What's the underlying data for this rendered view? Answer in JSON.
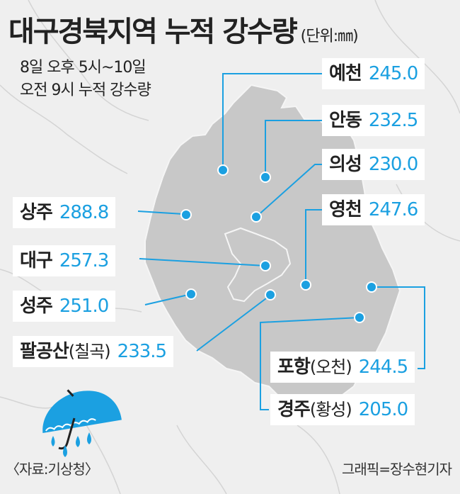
{
  "header": {
    "title": "대구경북지역 누적 강수량",
    "unit": "(단위:㎜)",
    "period_line1": "8일 오후 5시~10일",
    "period_line2": "오전 9시 누적 강수량"
  },
  "locations": {
    "yecheon": {
      "name": "예천",
      "paren": "",
      "value": "245.0"
    },
    "andong": {
      "name": "안동",
      "paren": "",
      "value": "232.5"
    },
    "uiseong": {
      "name": "의성",
      "paren": "",
      "value": "230.0"
    },
    "yeongcheon": {
      "name": "영천",
      "paren": "",
      "value": "247.6"
    },
    "sangju": {
      "name": "상주",
      "paren": "",
      "value": "288.8"
    },
    "daegu": {
      "name": "대구",
      "paren": "",
      "value": "257.3"
    },
    "seongju": {
      "name": "성주",
      "paren": "",
      "value": "251.0"
    },
    "palgongsan": {
      "name": "팔공산",
      "paren": "(칠곡)",
      "value": "233.5"
    },
    "pohang": {
      "name": "포항",
      "paren": "(오천)",
      "value": "244.5"
    },
    "gyeongju": {
      "name": "경주",
      "paren": "(황성)",
      "value": "205.0"
    }
  },
  "footer": {
    "source": "〈자료:기상청〉",
    "credit": "그래픽=장수현기자"
  },
  "colors": {
    "background": "#efefef",
    "region_fill": "#c8c8c8",
    "accent": "#1ba0e1",
    "marker": "#1ba0e1"
  },
  "icons": [
    "umbrella-icon",
    "raindrop-icon"
  ]
}
